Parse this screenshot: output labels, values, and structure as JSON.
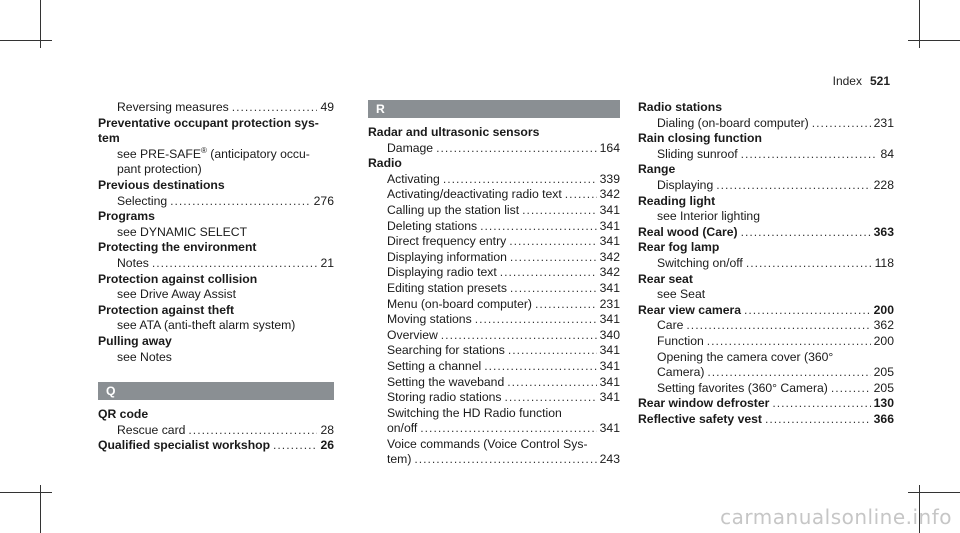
{
  "header": {
    "label": "Index",
    "page": "521"
  },
  "col1": [
    {
      "kind": "sub",
      "text": "Reversing measures",
      "page": "49"
    },
    {
      "kind": "head",
      "text": "Preventative occupant protection sys-"
    },
    {
      "kind": "head",
      "text": "tem"
    },
    {
      "kind": "see",
      "text": "see PRE-SAFE"
    },
    {
      "kind": "cont",
      "text": "pant protection)"
    },
    {
      "kind": "head",
      "text": "Previous destinations"
    },
    {
      "kind": "sub",
      "text": "Selecting",
      "page": "276"
    },
    {
      "kind": "head",
      "text": "Programs"
    },
    {
      "kind": "see",
      "text": "see DYNAMIC SELECT"
    },
    {
      "kind": "head",
      "text": "Protecting the environment"
    },
    {
      "kind": "sub",
      "text": "Notes",
      "page": "21"
    },
    {
      "kind": "head",
      "text": "Protection against collision"
    },
    {
      "kind": "see",
      "text": "see Drive Away Assist"
    },
    {
      "kind": "head",
      "text": "Protection against theft"
    },
    {
      "kind": "see",
      "text": "see ATA (anti-theft alarm system)"
    },
    {
      "kind": "head",
      "text": "Pulling away"
    },
    {
      "kind": "see",
      "text": "see Notes"
    }
  ],
  "presafe_tail": "(anticipatory occu-",
  "presafe_reg": "®",
  "q_section": {
    "letter": "Q",
    "entries": [
      {
        "kind": "head",
        "text": "QR code"
      },
      {
        "kind": "sub",
        "text": "Rescue card",
        "page": "28"
      },
      {
        "kind": "boldentry",
        "text": "Qualified specialist workshop",
        "page": "26"
      }
    ]
  },
  "r_letter": "R",
  "col2": [
    {
      "kind": "head",
      "text": "Radar and ultrasonic sensors"
    },
    {
      "kind": "sub",
      "text": "Damage",
      "page": "164"
    },
    {
      "kind": "head",
      "text": "Radio"
    },
    {
      "kind": "sub",
      "text": "Activating",
      "page": "339"
    },
    {
      "kind": "sub",
      "text": "Activating/deactivating radio text",
      "page": "342"
    },
    {
      "kind": "sub",
      "text": "Calling up the station list",
      "page": "341"
    },
    {
      "kind": "sub",
      "text": "Deleting stations",
      "page": "341"
    },
    {
      "kind": "sub",
      "text": "Direct frequency entry",
      "page": "341"
    },
    {
      "kind": "sub",
      "text": "Displaying information",
      "page": "342"
    },
    {
      "kind": "sub",
      "text": "Displaying radio text",
      "page": "342"
    },
    {
      "kind": "sub",
      "text": "Editing station presets",
      "page": "341"
    },
    {
      "kind": "sub",
      "text": "Menu (on-board computer)",
      "page": "231"
    },
    {
      "kind": "sub",
      "text": "Moving stations",
      "page": "341"
    },
    {
      "kind": "sub",
      "text": "Overview",
      "page": "340"
    },
    {
      "kind": "sub",
      "text": "Searching for stations",
      "page": "341"
    },
    {
      "kind": "sub",
      "text": "Setting a channel",
      "page": "341"
    },
    {
      "kind": "sub",
      "text": "Setting the waveband",
      "page": "341"
    },
    {
      "kind": "sub",
      "text": "Storing radio stations",
      "page": "341"
    },
    {
      "kind": "cont",
      "text": "Switching the HD Radio function"
    },
    {
      "kind": "sub",
      "text": "on/off",
      "page": "341"
    },
    {
      "kind": "cont",
      "text": "Voice commands (Voice Control Sys-"
    },
    {
      "kind": "sub",
      "text": "tem)",
      "page": "243"
    }
  ],
  "col3": [
    {
      "kind": "head",
      "text": "Radio stations"
    },
    {
      "kind": "sub",
      "text": "Dialing (on-board computer)",
      "page": "231"
    },
    {
      "kind": "head",
      "text": "Rain closing function"
    },
    {
      "kind": "sub",
      "text": "Sliding sunroof",
      "page": "84"
    },
    {
      "kind": "head",
      "text": "Range"
    },
    {
      "kind": "sub",
      "text": "Displaying",
      "page": "228"
    },
    {
      "kind": "head",
      "text": "Reading light"
    },
    {
      "kind": "see",
      "text": "see Interior lighting"
    },
    {
      "kind": "boldentry",
      "text": "Real wood (Care)",
      "page": "363"
    },
    {
      "kind": "head",
      "text": "Rear fog lamp"
    },
    {
      "kind": "sub",
      "text": "Switching on/off",
      "page": "118"
    },
    {
      "kind": "head",
      "text": "Rear seat"
    },
    {
      "kind": "see",
      "text": "see Seat"
    },
    {
      "kind": "boldentry",
      "text": "Rear view camera",
      "page": "200"
    },
    {
      "kind": "sub",
      "text": "Care",
      "page": "362"
    },
    {
      "kind": "sub",
      "text": "Function",
      "page": "200"
    },
    {
      "kind": "cont",
      "text": "Opening the camera cover (360°"
    },
    {
      "kind": "sub",
      "text": "Camera)",
      "page": "205"
    },
    {
      "kind": "sub",
      "text": "Setting favorites (360° Camera)",
      "page": "205"
    },
    {
      "kind": "boldentry",
      "text": "Rear window defroster",
      "page": "130"
    },
    {
      "kind": "boldentry",
      "text": "Reflective safety vest",
      "page": "366"
    }
  ],
  "watermark": "carmanualsonline.info"
}
